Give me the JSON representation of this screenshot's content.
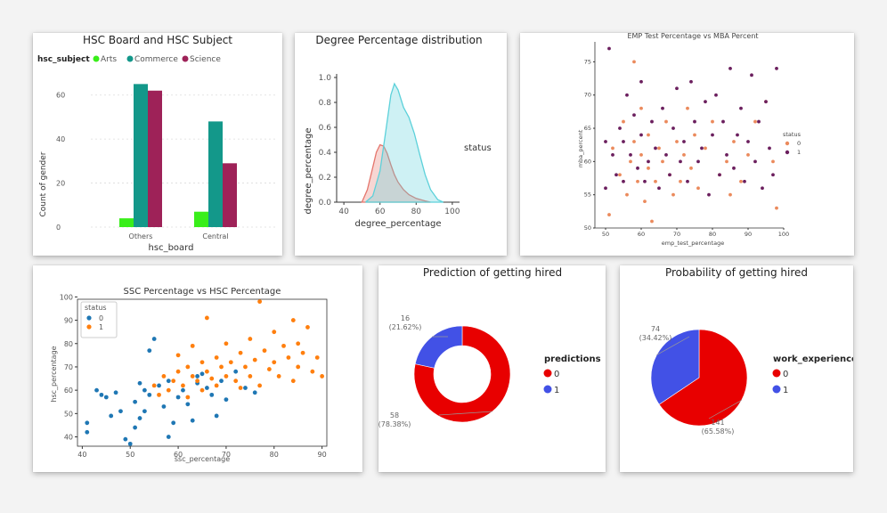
{
  "chart_data": [
    {
      "type": "bar",
      "title": "HSC Board and HSC Subject",
      "legend_title": "hsc_subject",
      "legend_position": "top-left",
      "categories": [
        "Others",
        "Central"
      ],
      "xlabel": "hsc_board",
      "ylabel": "Count of gender",
      "yticks": [
        "0",
        "20",
        "40",
        "60"
      ],
      "ylim": [
        0,
        70
      ],
      "grid": true,
      "series": [
        {
          "name": "Arts",
          "color": "#39ee1a",
          "values": [
            4,
            7
          ]
        },
        {
          "name": "Commerce",
          "color": "#13988a",
          "values": [
            65,
            48
          ]
        },
        {
          "name": "Science",
          "color": "#9e2258",
          "values": [
            62,
            29
          ]
        }
      ]
    },
    {
      "type": "area",
      "title": "Degree Percentage distribution",
      "xlabel": "degree_percentage",
      "ylabel": "degree_percentage",
      "legend_title": "status",
      "xticks": [
        "40",
        "60",
        "80",
        "100"
      ],
      "yticks": [
        "0.0",
        "0.2",
        "0.4",
        "0.6",
        "0.8",
        "1.0"
      ],
      "xlim": [
        36,
        104
      ],
      "ylim": [
        0,
        1.0
      ],
      "series": [
        {
          "color": "#e5766d",
          "x": [
            50,
            53,
            56,
            58,
            60,
            62,
            64,
            66,
            68,
            70,
            73,
            76,
            80,
            85,
            88
          ],
          "y": [
            0.0,
            0.1,
            0.28,
            0.4,
            0.46,
            0.45,
            0.39,
            0.3,
            0.22,
            0.16,
            0.1,
            0.06,
            0.03,
            0.01,
            0.0
          ]
        },
        {
          "color": "#5cd1da",
          "x": [
            52,
            56,
            60,
            63,
            66,
            68,
            70,
            73,
            76,
            79,
            82,
            85,
            88,
            92,
            95
          ],
          "y": [
            0.0,
            0.05,
            0.25,
            0.55,
            0.86,
            0.95,
            0.9,
            0.76,
            0.68,
            0.55,
            0.38,
            0.22,
            0.1,
            0.02,
            0.0
          ]
        }
      ]
    },
    {
      "type": "scatter",
      "title": "EMP Test Percentage vs MBA Percent",
      "xlabel": "emp_test_percentage",
      "ylabel": "mba_percent",
      "xticks": [
        "50",
        "60",
        "70",
        "80",
        "90",
        "100"
      ],
      "yticks": [
        "50",
        "55",
        "60",
        "65",
        "70",
        "75"
      ],
      "xlim": [
        47,
        100
      ],
      "ylim": [
        50,
        78
      ],
      "legend_title": "status",
      "legend_position": "right",
      "series": [
        {
          "name": "0",
          "color": "#eb8a5c",
          "x": [
            51,
            52,
            54,
            55,
            56,
            57,
            58,
            58,
            59,
            60,
            60,
            61,
            62,
            62,
            63,
            64,
            65,
            66,
            67,
            68,
            69,
            70,
            71,
            72,
            73,
            74,
            75,
            76,
            78,
            80,
            82,
            84,
            85,
            86,
            88,
            90,
            92,
            95,
            97,
            98
          ],
          "y": [
            52,
            62,
            58,
            66,
            55,
            60,
            75,
            63,
            57,
            61,
            68,
            54,
            59,
            64,
            51,
            57,
            62,
            60,
            66,
            58,
            55,
            63,
            57,
            61,
            68,
            59,
            64,
            56,
            62,
            66,
            58,
            60,
            55,
            63,
            57,
            61,
            66,
            69,
            60,
            53
          ]
        },
        {
          "name": "1",
          "color": "#6b1f5e",
          "x": [
            50,
            50,
            51,
            52,
            53,
            54,
            55,
            55,
            56,
            57,
            58,
            59,
            60,
            60,
            61,
            62,
            63,
            64,
            65,
            66,
            67,
            68,
            69,
            70,
            71,
            72,
            73,
            74,
            75,
            76,
            77,
            78,
            79,
            80,
            81,
            82,
            83,
            84,
            85,
            86,
            87,
            88,
            89,
            90,
            91,
            92,
            93,
            94,
            95,
            96,
            97,
            98
          ],
          "y": [
            63,
            56,
            77,
            61,
            58,
            65,
            57,
            63,
            70,
            61,
            67,
            59,
            64,
            72,
            57,
            60,
            66,
            62,
            56,
            68,
            61,
            58,
            65,
            71,
            60,
            63,
            57,
            72,
            66,
            60,
            62,
            69,
            55,
            64,
            70,
            58,
            66,
            61,
            74,
            59,
            64,
            68,
            57,
            63,
            73,
            60,
            66,
            56,
            69,
            62,
            58,
            74
          ]
        }
      ]
    },
    {
      "type": "scatter",
      "title": "SSC Percentage vs HSC Percentage",
      "xlabel": "ssc_percentage",
      "ylabel": "hsc_percentage",
      "xticks": [
        "40",
        "50",
        "60",
        "70",
        "80",
        "90"
      ],
      "yticks": [
        "40",
        "50",
        "60",
        "70",
        "80",
        "90",
        "100"
      ],
      "xlim": [
        39,
        91
      ],
      "ylim": [
        36,
        99
      ],
      "legend_title": "status",
      "legend_position": "top-left",
      "series": [
        {
          "name": "0",
          "color": "#1f77b4",
          "x": [
            41,
            41,
            43,
            44,
            45,
            46,
            47,
            48,
            49,
            50,
            51,
            51,
            52,
            52,
            53,
            53,
            54,
            54,
            55,
            56,
            57,
            58,
            58,
            59,
            60,
            61,
            62,
            63,
            64,
            64,
            65,
            66,
            67,
            68,
            69,
            70,
            72,
            74,
            76
          ],
          "y": [
            46,
            42,
            60,
            58,
            57,
            49,
            59,
            51,
            39,
            37,
            55,
            44,
            48,
            63,
            51,
            60,
            77,
            58,
            82,
            62,
            53,
            40,
            64,
            46,
            57,
            60,
            54,
            47,
            66,
            63,
            67,
            61,
            58,
            49,
            64,
            56,
            68,
            61,
            59
          ]
        },
        {
          "name": "1",
          "color": "#ff7f0e",
          "x": [
            55,
            56,
            57,
            58,
            59,
            60,
            60,
            61,
            62,
            62,
            63,
            63,
            64,
            65,
            65,
            66,
            66,
            67,
            68,
            68,
            69,
            70,
            70,
            71,
            72,
            73,
            73,
            74,
            75,
            75,
            76,
            77,
            77,
            78,
            79,
            80,
            80,
            81,
            82,
            83,
            84,
            84,
            85,
            85,
            86,
            87,
            88,
            89,
            90
          ],
          "y": [
            62,
            58,
            66,
            60,
            64,
            68,
            75,
            62,
            70,
            57,
            66,
            79,
            64,
            72,
            60,
            68,
            91,
            65,
            74,
            62,
            70,
            66,
            80,
            72,
            64,
            76,
            61,
            70,
            82,
            66,
            73,
            98,
            62,
            77,
            69,
            72,
            85,
            66,
            79,
            74,
            90,
            64,
            80,
            70,
            76,
            87,
            68,
            74,
            66
          ]
        }
      ]
    },
    {
      "type": "pie",
      "title": "Prediction of getting hired",
      "legend_title": "predictions",
      "legend_position": "right",
      "donut": true,
      "labels": [
        "0",
        "1"
      ],
      "values": [
        58,
        16
      ],
      "percent_labels": [
        "(78.38%)",
        "(21.62%)"
      ],
      "colors": [
        "#e80000",
        "#4251e6"
      ]
    },
    {
      "type": "pie",
      "title": "Probability of getting hired",
      "legend_title": "work_experience",
      "legend_position": "right",
      "donut": false,
      "labels": [
        "0",
        "1"
      ],
      "values": [
        141,
        74
      ],
      "percent_labels": [
        "(65.58%)",
        "(34.42%)"
      ],
      "colors": [
        "#e80000",
        "#4251e6"
      ]
    }
  ]
}
